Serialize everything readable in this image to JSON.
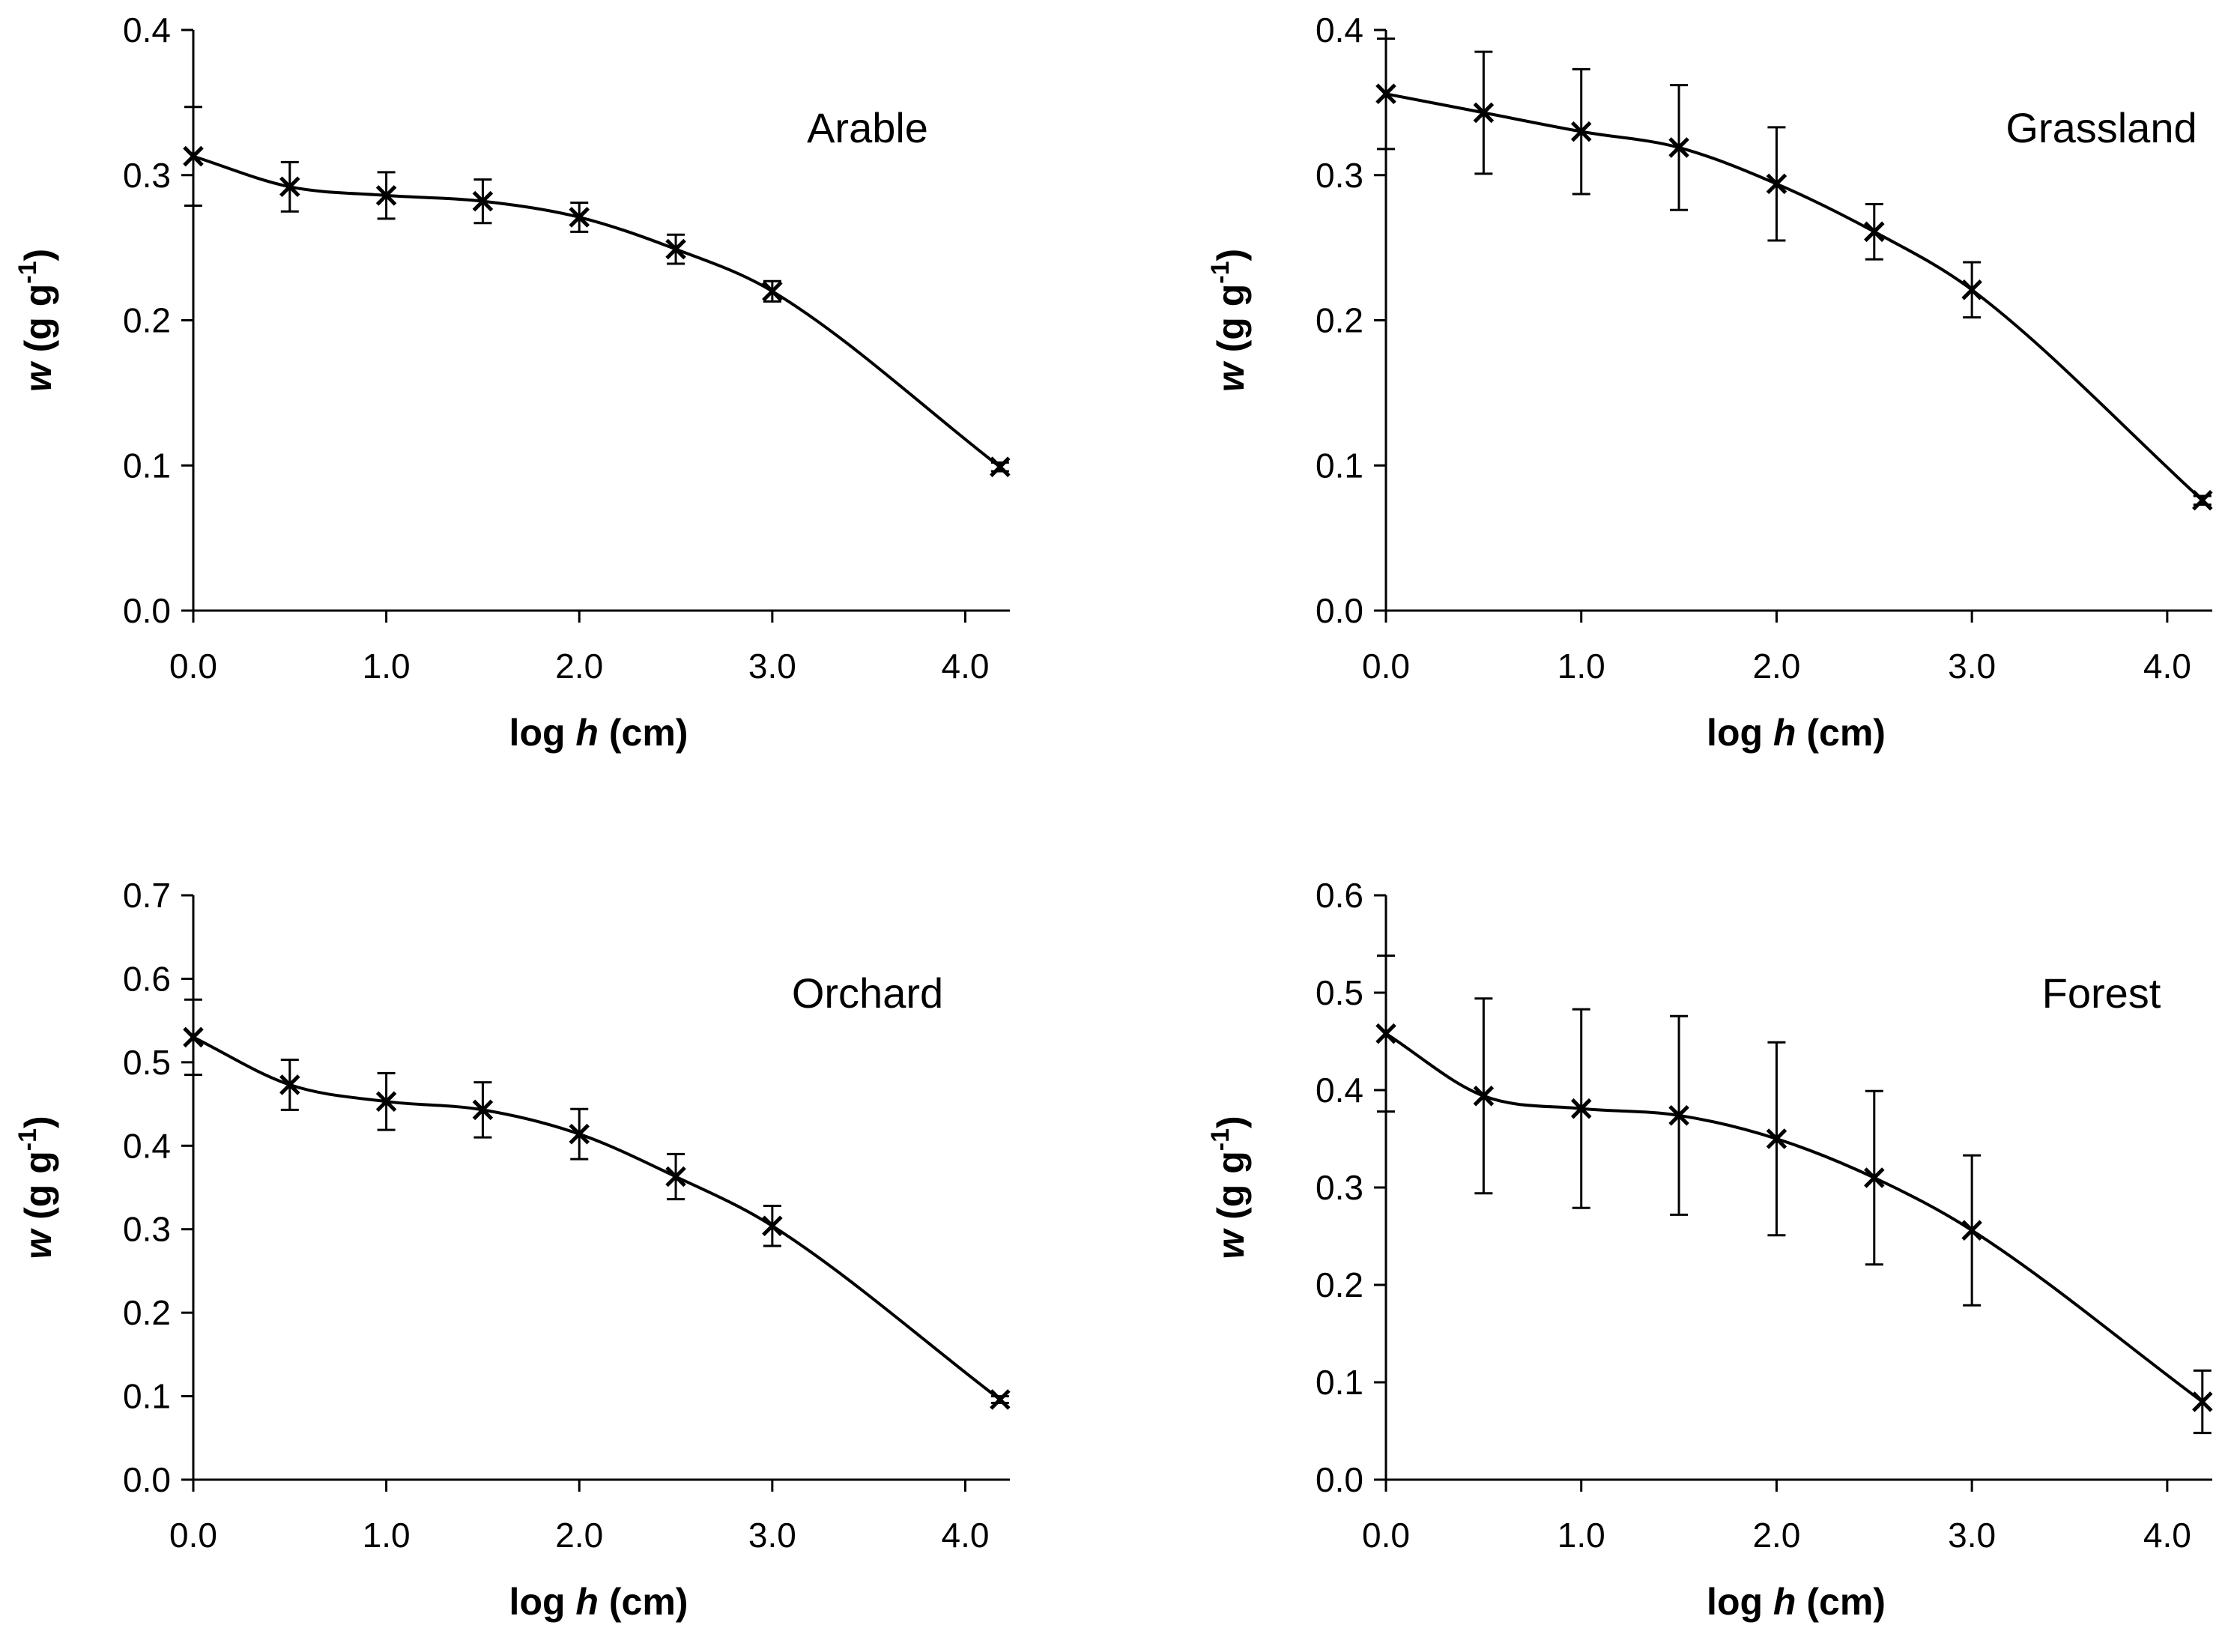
{
  "chart_data": [
    {
      "type": "line",
      "title": "Arable",
      "xlabel": "log h (cm)",
      "ylabel": "w (g g-1)",
      "xlim": [
        0,
        4.2
      ],
      "ylim": [
        0,
        0.4
      ],
      "xticks": [
        "0.0",
        "1.0",
        "2.0",
        "3.0",
        "4.0"
      ],
      "yticks": [
        "0.0",
        "0.1",
        "0.2",
        "0.3",
        "0.4"
      ],
      "grid": false,
      "legend": "none",
      "series": [
        {
          "name": "Arable",
          "x": [
            0,
            0.5,
            1.0,
            1.5,
            2.0,
            2.5,
            3.0,
            4.18
          ],
          "y": [
            0.313,
            0.292,
            0.286,
            0.282,
            0.271,
            0.249,
            0.22,
            0.099
          ],
          "err": [
            0.034,
            0.017,
            0.016,
            0.015,
            0.01,
            0.01,
            0.007,
            0.003
          ]
        }
      ]
    },
    {
      "type": "line",
      "title": "Grassland",
      "xlabel": "log h (cm)",
      "ylabel": "w (g g-1)",
      "xlim": [
        0,
        4.2
      ],
      "ylim": [
        0,
        0.4
      ],
      "xticks": [
        "0.0",
        "1.0",
        "2.0",
        "3.0",
        "4.0"
      ],
      "yticks": [
        "0.0",
        "0.1",
        "0.2",
        "0.3",
        "0.4"
      ],
      "grid": false,
      "legend": "none",
      "series": [
        {
          "name": "Grassland",
          "x": [
            0,
            0.5,
            1.0,
            1.5,
            2.0,
            2.5,
            3.0,
            4.18
          ],
          "y": [
            0.356,
            0.343,
            0.33,
            0.319,
            0.294,
            0.261,
            0.221,
            0.076
          ],
          "err": [
            0.038,
            0.042,
            0.043,
            0.043,
            0.039,
            0.019,
            0.019,
            0.003
          ]
        }
      ]
    },
    {
      "type": "line",
      "title": "Orchard",
      "xlabel": "log h (cm)",
      "ylabel": "w (g g-1)",
      "xlim": [
        0,
        4.2
      ],
      "ylim": [
        0,
        0.7
      ],
      "xticks": [
        "0.0",
        "1.0",
        "2.0",
        "3.0",
        "4.0"
      ],
      "yticks": [
        "0.0",
        "0.1",
        "0.2",
        "0.3",
        "0.4",
        "0.5",
        "0.6",
        "0.7"
      ],
      "grid": false,
      "legend": "none",
      "series": [
        {
          "name": "Orchard",
          "x": [
            0,
            0.5,
            1.0,
            1.5,
            2.0,
            2.5,
            3.0,
            4.18
          ],
          "y": [
            0.53,
            0.473,
            0.453,
            0.443,
            0.414,
            0.363,
            0.304,
            0.096
          ],
          "err": [
            0.045,
            0.03,
            0.034,
            0.033,
            0.03,
            0.027,
            0.024,
            0.004
          ]
        }
      ]
    },
    {
      "type": "line",
      "title": "Forest",
      "xlabel": "log h (cm)",
      "ylabel": "w (g g-1)",
      "xlim": [
        0,
        4.2
      ],
      "ylim": [
        0,
        0.6
      ],
      "xticks": [
        "0.0",
        "1.0",
        "2.0",
        "3.0",
        "4.0"
      ],
      "yticks": [
        "0.0",
        "0.1",
        "0.2",
        "0.3",
        "0.4",
        "0.5",
        "0.6"
      ],
      "grid": false,
      "legend": "none",
      "series": [
        {
          "name": "Forest",
          "x": [
            0,
            0.5,
            1.0,
            1.5,
            2.0,
            2.5,
            3.0,
            4.18
          ],
          "y": [
            0.458,
            0.394,
            0.381,
            0.374,
            0.35,
            0.31,
            0.256,
            0.08
          ],
          "err": [
            0.08,
            0.1,
            0.102,
            0.102,
            0.099,
            0.089,
            0.077,
            0.032
          ]
        }
      ]
    }
  ]
}
